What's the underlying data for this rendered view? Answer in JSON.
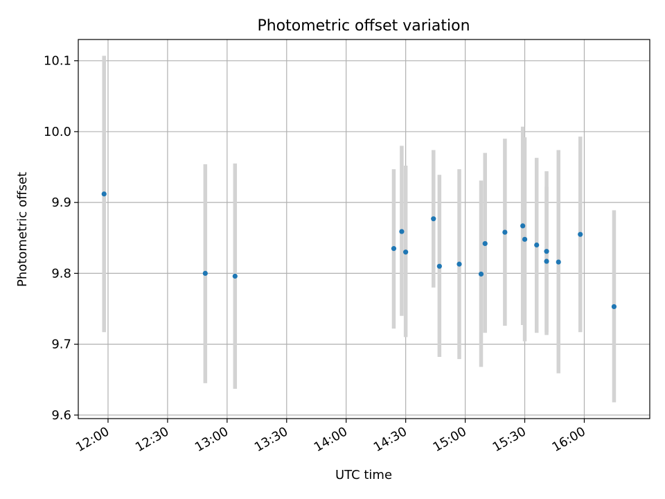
{
  "chart_data": {
    "type": "scatter",
    "title": "Photometric offset variation",
    "xlabel": "UTC time",
    "ylabel": "Photometric offset",
    "xlim": [
      "11:45",
      "16:33"
    ],
    "ylim": [
      9.595,
      10.13
    ],
    "x_ticks": [
      "12:00",
      "12:30",
      "13:00",
      "13:30",
      "14:00",
      "14:30",
      "15:00",
      "15:30",
      "16:00"
    ],
    "y_ticks": [
      9.6,
      9.7,
      9.8,
      9.9,
      10.0,
      10.1
    ],
    "y_tick_labels": [
      "9.6",
      "9.7",
      "9.8",
      "9.9",
      "10.0",
      "10.1"
    ],
    "grid": true,
    "marker_color": "#1f77b4",
    "errorbar_color": "#d3d3d3",
    "points": [
      {
        "x": "11:58",
        "y": 9.912,
        "low": 9.717,
        "high": 10.107
      },
      {
        "x": "12:49",
        "y": 9.8,
        "low": 9.645,
        "high": 9.954
      },
      {
        "x": "13:04",
        "y": 9.796,
        "low": 9.637,
        "high": 9.955
      },
      {
        "x": "14:24",
        "y": 9.835,
        "low": 9.722,
        "high": 9.947
      },
      {
        "x": "14:28",
        "y": 9.859,
        "low": 9.74,
        "high": 9.98
      },
      {
        "x": "14:30",
        "y": 9.83,
        "low": 9.71,
        "high": 9.952
      },
      {
        "x": "14:44",
        "y": 9.877,
        "low": 9.78,
        "high": 9.974
      },
      {
        "x": "14:47",
        "y": 9.81,
        "low": 9.682,
        "high": 9.939
      },
      {
        "x": "14:57",
        "y": 9.813,
        "low": 9.679,
        "high": 9.947
      },
      {
        "x": "15:08",
        "y": 9.799,
        "low": 9.668,
        "high": 9.931
      },
      {
        "x": "15:10",
        "y": 9.842,
        "low": 9.716,
        "high": 9.97
      },
      {
        "x": "15:20",
        "y": 9.858,
        "low": 9.726,
        "high": 9.99
      },
      {
        "x": "15:29",
        "y": 9.867,
        "low": 9.727,
        "high": 10.007
      },
      {
        "x": "15:30",
        "y": 9.848,
        "low": 9.704,
        "high": 9.992
      },
      {
        "x": "15:36",
        "y": 9.84,
        "low": 9.716,
        "high": 9.963
      },
      {
        "x": "15:41",
        "y": 9.831,
        "low": 9.717,
        "high": 9.944
      },
      {
        "x": "15:41",
        "y": 9.817,
        "low": 9.713,
        "high": 9.922
      },
      {
        "x": "15:47",
        "y": 9.816,
        "low": 9.659,
        "high": 9.974
      },
      {
        "x": "15:58",
        "y": 9.855,
        "low": 9.717,
        "high": 9.993
      },
      {
        "x": "16:15",
        "y": 9.753,
        "low": 9.618,
        "high": 9.889
      }
    ]
  }
}
